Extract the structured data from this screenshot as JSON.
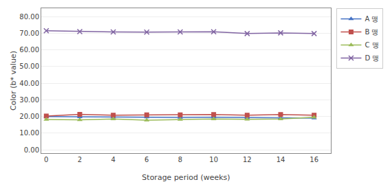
{
  "chart_data": {
    "type": "line",
    "x": [
      0,
      2,
      4,
      6,
      8,
      10,
      12,
      14,
      16
    ],
    "series": [
      {
        "name": "A 맹",
        "color": "#4472C4",
        "marker": "triangle",
        "values": [
          20.0,
          19.8,
          19.5,
          19.6,
          19.4,
          19.5,
          19.3,
          19.2,
          19.0
        ]
      },
      {
        "name": "B 맹",
        "color": "#C0504D",
        "marker": "square",
        "values": [
          20.3,
          21.3,
          20.8,
          21.0,
          21.0,
          21.2,
          20.8,
          21.2,
          20.8
        ]
      },
      {
        "name": "C 맹",
        "color": "#9BBB59",
        "marker": "triangle",
        "values": [
          18.2,
          18.0,
          18.5,
          17.8,
          18.2,
          18.5,
          18.3,
          18.5,
          19.5
        ]
      },
      {
        "name": "D 맹",
        "color": "#8064A2",
        "marker": "x",
        "values": [
          71.5,
          71.0,
          70.8,
          70.7,
          70.8,
          70.9,
          69.8,
          70.2,
          69.8
        ]
      }
    ],
    "x_label": "Storage period (weeks)",
    "y_label": "Color (b* value)",
    "xlim": [
      -0.3,
      17
    ],
    "xticks": [
      0,
      2,
      4,
      6,
      8,
      10,
      12,
      14,
      16
    ],
    "ylim": [
      -2,
      85
    ],
    "yticks": [
      {
        "value": 0.0,
        "label": "0.00"
      },
      {
        "value": 10.0,
        "label": "10.00"
      },
      {
        "value": 20.0,
        "label": "20.00"
      },
      {
        "value": 30.0,
        "label": "30.00"
      },
      {
        "value": 40.0,
        "label": "40.00"
      },
      {
        "value": 50.0,
        "label": "50.00"
      },
      {
        "value": 60.0,
        "label": "60.00"
      },
      {
        "value": 70.0,
        "label": "70.00"
      },
      {
        "value": 80.0,
        "label": "80.00"
      }
    ],
    "grid": true,
    "legend": "upper right"
  }
}
